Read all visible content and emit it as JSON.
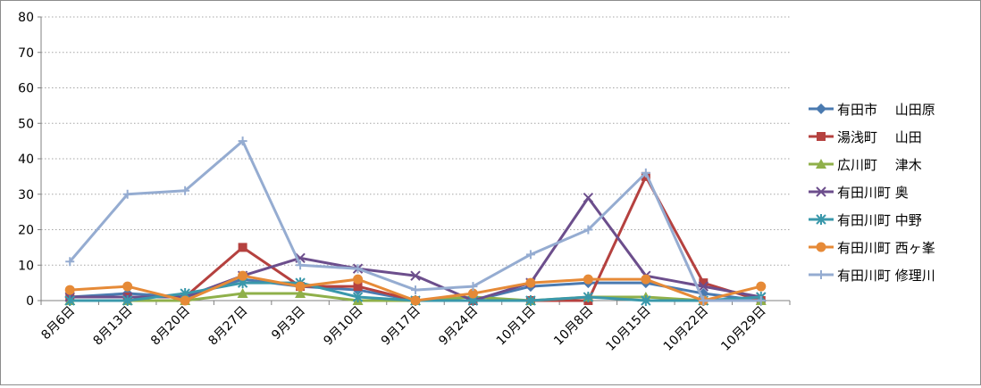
{
  "chart_data": {
    "type": "line",
    "title": "",
    "xlabel": "",
    "ylabel": "",
    "ylim": [
      0,
      80
    ],
    "yticks": [
      0,
      10,
      20,
      30,
      40,
      50,
      60,
      70,
      80
    ],
    "grid": true,
    "legend_position": "right",
    "categories": [
      "8月6日",
      "8月13日",
      "8月20日",
      "8月27日",
      "9月3日",
      "9月10日",
      "9月17日",
      "9月24日",
      "10月1日",
      "10月8日",
      "10月15日",
      "10月22日",
      "10月29日"
    ],
    "series": [
      {
        "name": "有田市　 山田原",
        "color": "#4a7ab0",
        "marker": "diamond",
        "values": [
          1,
          2,
          1,
          6,
          4,
          3,
          0,
          0,
          4,
          5,
          5,
          2,
          0
        ]
      },
      {
        "name": "湯浅町　 山田",
        "color": "#b5413f",
        "marker": "square",
        "values": [
          1,
          1,
          1,
          15,
          4,
          4,
          0,
          0,
          0,
          0,
          35,
          5,
          0
        ]
      },
      {
        "name": "広川町　 津木",
        "color": "#8fb04a",
        "marker": "triangle",
        "values": [
          0,
          0,
          0,
          2,
          2,
          0,
          0,
          1,
          0,
          1,
          1,
          0,
          0
        ]
      },
      {
        "name": "有田川町 奥",
        "color": "#6c4e8c",
        "marker": "x",
        "values": [
          1,
          1,
          1,
          7,
          12,
          9,
          7,
          0,
          5,
          29,
          7,
          4,
          1
        ]
      },
      {
        "name": "有田川町 中野",
        "color": "#3a98ab",
        "marker": "star",
        "values": [
          0,
          0,
          2,
          5,
          5,
          1,
          0,
          0,
          0,
          1,
          0,
          0,
          1
        ]
      },
      {
        "name": "有田川町 西ヶ峯",
        "color": "#e68a37",
        "marker": "circle",
        "values": [
          3,
          4,
          0,
          7,
          4,
          6,
          0,
          2,
          5,
          6,
          6,
          0,
          4
        ]
      },
      {
        "name": "有田川町 修理川",
        "color": "#95acd1",
        "marker": "plus",
        "values": [
          11,
          30,
          31,
          45,
          10,
          9,
          3,
          4,
          13,
          20,
          36,
          0,
          0
        ]
      }
    ]
  }
}
